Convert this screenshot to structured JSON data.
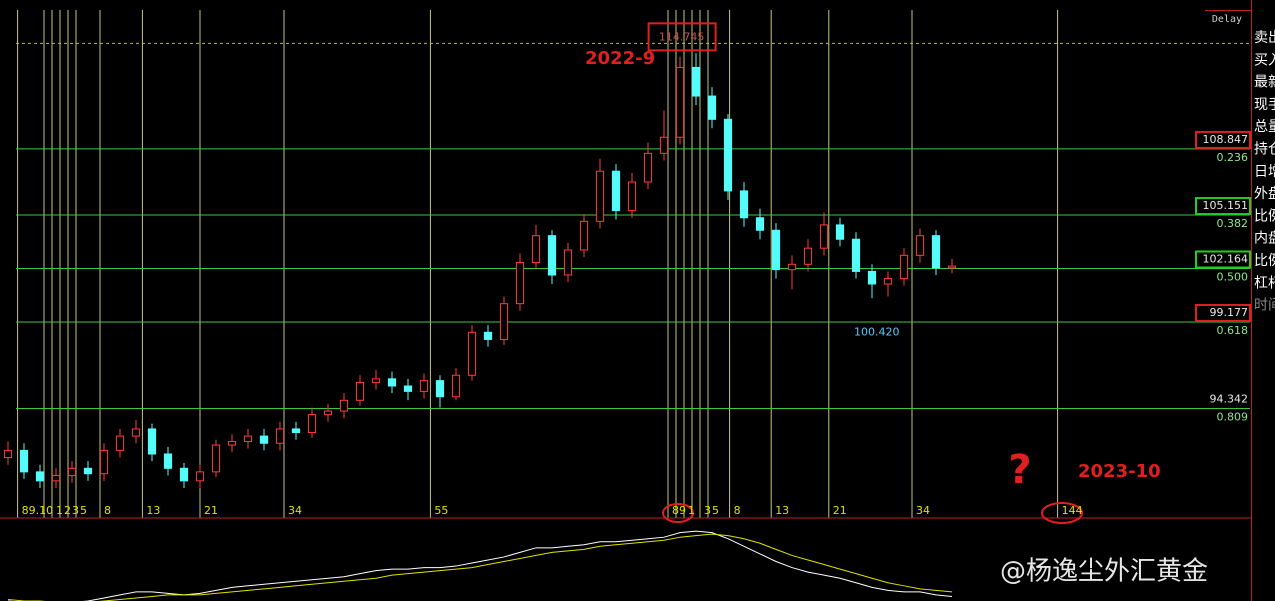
{
  "top_right": "Delay",
  "side_panel": [
    "卖出",
    "买入",
    "最新",
    "现手",
    "总量",
    "持仓",
    "日增",
    "外盘",
    "比例",
    "内盘",
    "比例",
    "杠杆",
    "时间"
  ],
  "watermark": "@杨逸尘外汇黄金",
  "annotations": [
    "2022-9",
    "?",
    "2023-10"
  ],
  "chart_data": {
    "type": "candlestick",
    "xlim": [
      -0.5,
      77.625
    ],
    "ylim": [
      88,
      117
    ],
    "up_color": "#ff3c3c",
    "down_color": "#54fcfc",
    "open": [
      91.6,
      92.0,
      90.8,
      90.3,
      90.6,
      91.0,
      90.7,
      92.0,
      92.8,
      93.2,
      91.8,
      91.0,
      90.3,
      90.8,
      92.3,
      92.5,
      92.8,
      92.4,
      93.2,
      93.0,
      94.0,
      94.2,
      94.8,
      95.8,
      96.0,
      95.6,
      95.3,
      95.9,
      95.0,
      96.2,
      98.6,
      98.2,
      100.2,
      102.5,
      104.0,
      101.8,
      103.2,
      104.8,
      107.6,
      105.4,
      107.0,
      108.6,
      109.5,
      113.4,
      111.8,
      110.5,
      106.5,
      105.0,
      104.3,
      102.1,
      102.4,
      103.3,
      104.6,
      103.8,
      102.0,
      101.3,
      101.6,
      102.9,
      104.0,
      102.2
    ],
    "high": [
      92.5,
      92.4,
      91.2,
      91.0,
      91.4,
      91.4,
      92.4,
      93.2,
      93.7,
      93.5,
      92.2,
      91.3,
      91.2,
      92.6,
      92.9,
      93.2,
      93.2,
      93.6,
      93.6,
      94.4,
      94.6,
      95.2,
      96.2,
      96.5,
      96.4,
      96.0,
      96.3,
      96.2,
      96.6,
      99.0,
      99.0,
      100.6,
      103.0,
      104.6,
      104.3,
      103.6,
      105.2,
      108.3,
      108.0,
      107.5,
      109.2,
      111.0,
      114.0,
      114.2,
      112.3,
      110.8,
      107.0,
      105.5,
      104.7,
      102.9,
      103.8,
      105.3,
      105.0,
      104.2,
      102.4,
      102.0,
      103.3,
      104.4,
      104.3,
      102.7
    ],
    "low": [
      91.2,
      90.4,
      89.9,
      89.9,
      90.2,
      90.3,
      90.3,
      91.6,
      92.4,
      91.4,
      90.6,
      89.9,
      89.9,
      90.5,
      91.9,
      92.1,
      92.0,
      92.0,
      92.6,
      92.7,
      93.6,
      93.8,
      94.5,
      95.4,
      95.2,
      94.8,
      94.9,
      94.4,
      94.8,
      95.9,
      97.8,
      97.9,
      99.8,
      102.1,
      101.3,
      101.4,
      102.8,
      104.4,
      104.9,
      105.0,
      106.6,
      108.2,
      109.1,
      111.3,
      110.0,
      106.0,
      104.5,
      103.8,
      101.6,
      101.0,
      102.0,
      102.9,
      103.4,
      101.6,
      100.5,
      100.6,
      101.2,
      102.5,
      101.8,
      101.9
    ],
    "close": [
      92.0,
      90.8,
      90.3,
      90.6,
      91.0,
      90.7,
      92.0,
      92.8,
      93.2,
      91.8,
      91.0,
      90.3,
      90.8,
      92.3,
      92.5,
      92.8,
      92.4,
      93.2,
      93.0,
      94.0,
      94.2,
      94.8,
      95.8,
      96.0,
      95.6,
      95.3,
      95.9,
      95.0,
      96.2,
      98.6,
      98.2,
      100.2,
      102.5,
      104.0,
      101.8,
      103.2,
      104.8,
      107.6,
      105.4,
      107.0,
      108.6,
      109.5,
      113.4,
      111.8,
      110.5,
      106.5,
      105.0,
      104.3,
      102.1,
      102.4,
      103.3,
      104.6,
      103.8,
      102.0,
      101.3,
      101.6,
      102.9,
      104.0,
      102.2,
      102.3
    ],
    "fib_levels": [
      {
        "price": 108.847,
        "ratio": 0.236,
        "box": "#e02020"
      },
      {
        "price": 105.151,
        "ratio": 0.382,
        "box": "#20d020"
      },
      {
        "price": 102.164,
        "ratio": {
          "value": 0.5,
          "label": "0.500"
        },
        "box": "#20d020"
      },
      {
        "price": 99.177,
        "ratio": 0.618,
        "box": "#e02020"
      },
      {
        "price": 94.342,
        "ratio": 0.809
      }
    ],
    "high_mark": {
      "value": 114.745,
      "x": 42.1,
      "box": "#e02020"
    },
    "low_mark": {
      "value": 100.42,
      "label": "100.420",
      "x": 54.3
    },
    "time_zones": [
      {
        "x": [
          0.6,
          2.25,
          2.75,
          3.25,
          3.75,
          4.25,
          5.75,
          8.4,
          12,
          17.25,
          26.4
        ],
        "labels": [
          "89.10",
          null,
          "1",
          "2",
          "3",
          "5",
          "8",
          "13",
          "21",
          "34",
          "55"
        ]
      },
      {
        "x": [
          41.25,
          41.75,
          42.25,
          42.75,
          43.25,
          43.75,
          45.1,
          47.7,
          51.3,
          56.5,
          65.6
        ],
        "labels": [
          "89",
          null,
          "1",
          null,
          "3",
          "5",
          "8",
          "13",
          "21",
          "34",
          "144"
        ]
      }
    ],
    "indicator": {
      "ylim": [
        -2.6,
        2.6
      ],
      "colors": [
        "#ffffff",
        "#e0e000"
      ],
      "dif": [
        -2.6,
        -2.7,
        -2.8,
        -2.8,
        -2.7,
        -2.6,
        -2.4,
        -2.2,
        -2.0,
        -2.0,
        -2.1,
        -2.2,
        -2.1,
        -1.9,
        -1.7,
        -1.6,
        -1.5,
        -1.4,
        -1.3,
        -1.2,
        -1.1,
        -1.0,
        -0.8,
        -0.6,
        -0.5,
        -0.5,
        -0.4,
        -0.4,
        -0.3,
        -0.1,
        0.1,
        0.3,
        0.6,
        0.9,
        0.9,
        1.0,
        1.1,
        1.3,
        1.3,
        1.4,
        1.5,
        1.6,
        1.9,
        2.0,
        1.9,
        1.5,
        1.0,
        0.5,
        0.0,
        -0.4,
        -0.7,
        -0.9,
        -1.1,
        -1.4,
        -1.7,
        -1.9,
        -2.0,
        -2.0,
        -2.2,
        -2.3
      ],
      "dea": [
        -2.5,
        -2.6,
        -2.6,
        -2.7,
        -2.7,
        -2.7,
        -2.6,
        -2.5,
        -2.4,
        -2.3,
        -2.2,
        -2.2,
        -2.2,
        -2.1,
        -2.0,
        -1.9,
        -1.8,
        -1.7,
        -1.6,
        -1.5,
        -1.4,
        -1.3,
        -1.2,
        -1.1,
        -0.9,
        -0.8,
        -0.7,
        -0.6,
        -0.5,
        -0.4,
        -0.2,
        0.0,
        0.2,
        0.4,
        0.6,
        0.7,
        0.8,
        1.0,
        1.1,
        1.2,
        1.3,
        1.4,
        1.6,
        1.7,
        1.8,
        1.7,
        1.5,
        1.2,
        0.8,
        0.4,
        0.1,
        -0.2,
        -0.5,
        -0.8,
        -1.1,
        -1.4,
        -1.6,
        -1.8,
        -1.9,
        -2.0
      ]
    }
  }
}
